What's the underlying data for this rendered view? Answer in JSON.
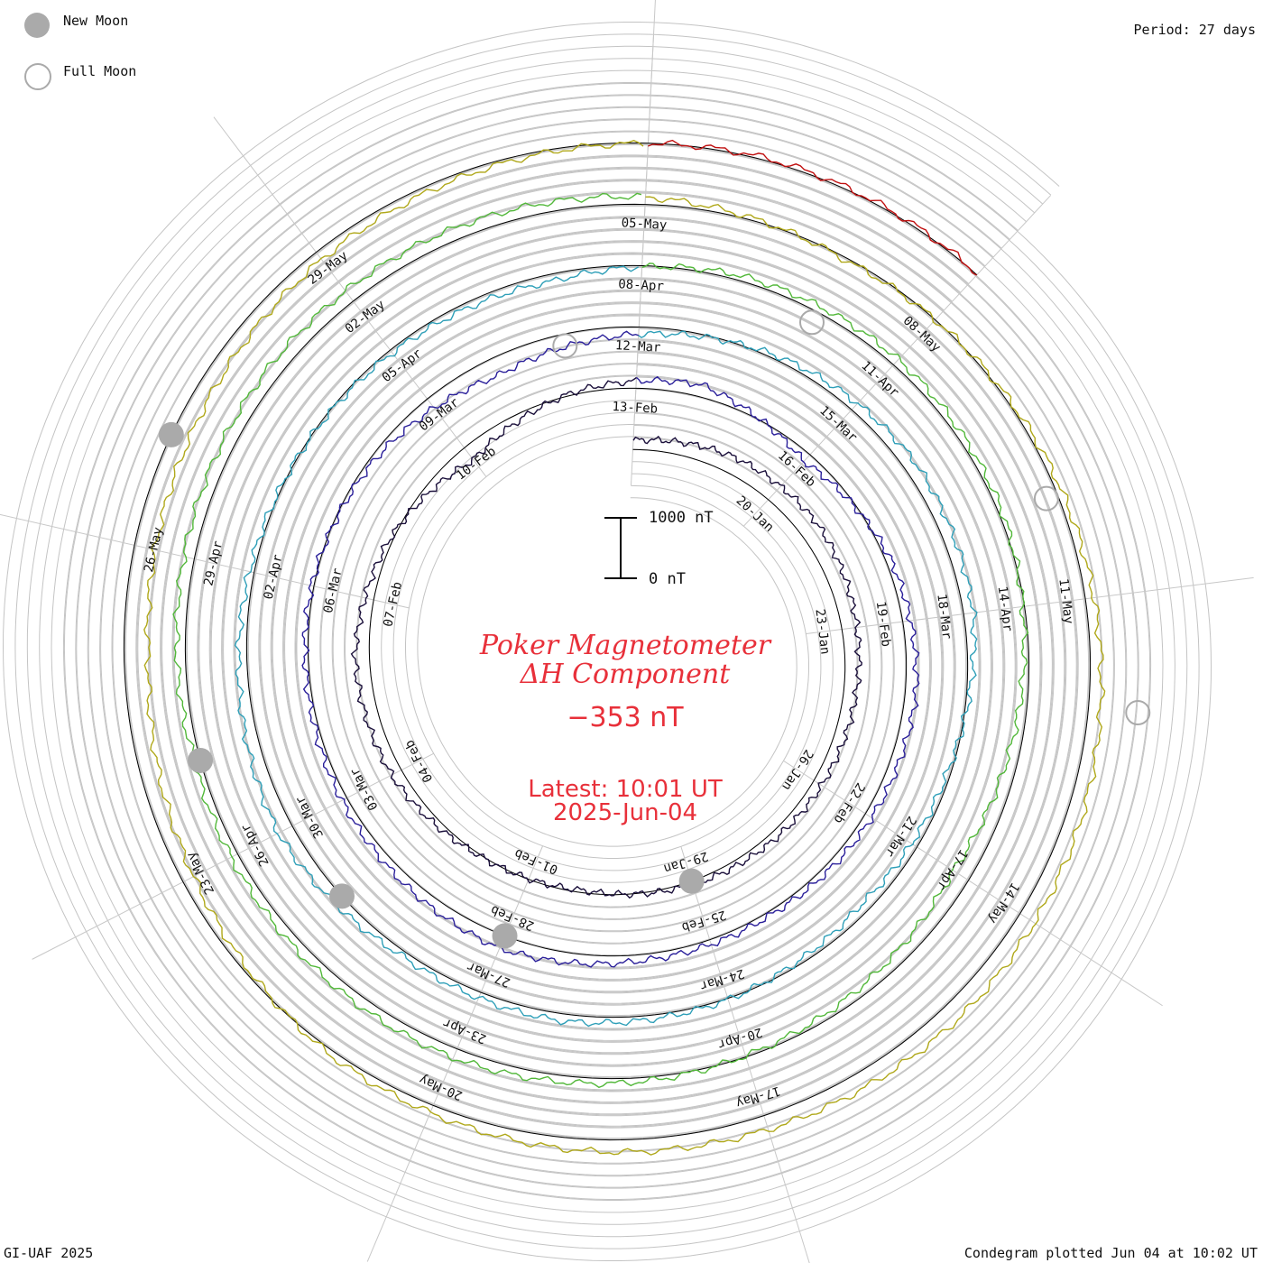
{
  "legend": {
    "new_moon_label": "New Moon",
    "full_moon_label": "Full Moon",
    "new_moon_color": "#aaaaaa",
    "full_moon_color": "#aaaaaa"
  },
  "period_label": "Period: 27 days",
  "footer_left": "GI-UAF 2025",
  "footer_right": "Condegram plotted Jun 04 at 10:02 UT",
  "title": {
    "line1": "Poker Magnetometer",
    "line2": "ΔH Component",
    "value": "−353 nT",
    "latest": "Latest: 10:01 UT",
    "date": "2025-Jun-04",
    "color": "#e8303a"
  },
  "scale_bar": {
    "top_label": "1000 nT",
    "bottom_label": "0 nT"
  },
  "chart_data": {
    "type": "line",
    "projection": "spiral (condegram), clockwise from top, one revolution per period",
    "period_days": 27,
    "start_date": "2025-01-17",
    "end_date": "2025-06-04",
    "units": "nT",
    "x_tick_labels": [
      "20-Jan",
      "23-Jan",
      "26-Jan",
      "29-Jan",
      "01-Feb",
      "04-Feb",
      "07-Feb",
      "10-Feb",
      "13-Feb",
      "16-Feb",
      "19-Feb",
      "22-Feb",
      "25-Feb",
      "28-Feb",
      "03-Mar",
      "06-Mar",
      "09-Mar",
      "12-Mar",
      "15-Mar",
      "18-Mar",
      "21-Mar",
      "24-Mar",
      "27-Mar",
      "30-Mar",
      "02-Apr",
      "05-Apr",
      "08-Apr",
      "11-Apr",
      "14-Apr",
      "17-Apr",
      "20-Apr",
      "23-Apr",
      "26-Apr",
      "29-Apr",
      "02-May",
      "05-May",
      "08-May",
      "11-May",
      "14-May",
      "17-May",
      "20-May",
      "23-May",
      "26-May",
      "29-May"
    ],
    "rotations": [
      {
        "start": "2025-01-17",
        "color": "#1a0f3a"
      },
      {
        "start": "2025-02-13",
        "color": "#2a1f9a"
      },
      {
        "start": "2025-03-12",
        "color": "#2e9fb8"
      },
      {
        "start": "2025-04-08",
        "color": "#52b83a"
      },
      {
        "start": "2025-05-05",
        "color": "#b0a81a"
      },
      {
        "start": "2025-06-01",
        "color": "#c01010"
      }
    ],
    "new_moons": [
      "2025-01-29",
      "2025-02-28",
      "2025-03-29",
      "2025-04-27",
      "2025-05-27"
    ],
    "full_moons": [
      "2025-02-12",
      "2025-03-14",
      "2025-04-13",
      "2025-05-12"
    ],
    "scale_reference": [
      0,
      1000
    ],
    "latest_value_nT": -353,
    "series": [
      {
        "step_days": 2,
        "values": [
          150,
          280,
          320,
          250,
          180,
          120,
          60,
          -40,
          20,
          180,
          240,
          60,
          -250,
          40,
          200,
          -150,
          80,
          180,
          120,
          60,
          100,
          220,
          120,
          60,
          40,
          -80,
          -300,
          -120,
          80,
          200,
          160,
          -60,
          -150,
          20,
          120,
          80,
          260,
          140,
          20,
          -60,
          -120,
          80,
          120,
          60,
          -120,
          -300,
          -100,
          60,
          160,
          140,
          100,
          180,
          220,
          200,
          120,
          -40,
          40,
          140,
          260,
          300,
          240,
          180,
          80,
          -200,
          -400,
          -300,
          -150,
          -50,
          40,
          20,
          -100,
          -250,
          -150,
          60,
          220,
          180,
          140,
          -100,
          -400,
          -200,
          60,
          300,
          460,
          220,
          -100,
          -350
        ]
      }
    ]
  }
}
